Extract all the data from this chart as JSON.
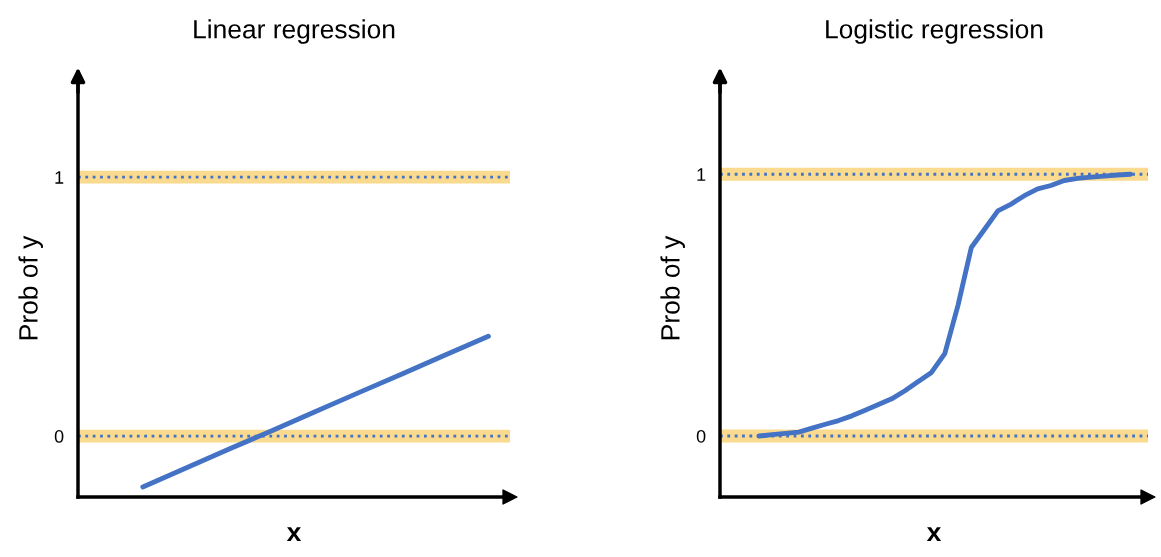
{
  "chart_data": [
    {
      "type": "line",
      "title": "Linear regression",
      "xlabel": "x",
      "ylabel": "Prob of y",
      "ylim": [
        -0.235,
        1.375
      ],
      "yticks": [
        0,
        1
      ],
      "tick_labels": "y",
      "grid": false,
      "categories": [
        null,
        null,
        null,
        null,
        null,
        null,
        null,
        null,
        null,
        null
      ],
      "series": [
        {
          "color": "#4472c4",
          "values": [
            null,
            -0.196,
            -0.123,
            -0.05,
            0.022,
            0.095,
            0.168,
            0.24,
            0.313,
            0.386
          ]
        }
      ],
      "ref_lines": [
        {
          "axis": "y",
          "value": 0,
          "color": "#4472c4",
          "line_style": "dotted"
        },
        {
          "axis": "y",
          "value": 1,
          "color": "#4472c4",
          "line_style": "dotted"
        }
      ],
      "bands": [
        {
          "axis": "y",
          "from": -0.025,
          "to": 0.025,
          "color": "#f5c242"
        },
        {
          "axis": "y",
          "from": 0.975,
          "to": 1.025,
          "color": "#f5c242"
        }
      ]
    },
    {
      "type": "line",
      "title": "Logistic regression",
      "xlabel": "x",
      "ylabel": "Prob of y",
      "ylim": [
        -0.233,
        1.36
      ],
      "yticks": [
        0,
        1
      ],
      "tick_labels": "y",
      "grid": false,
      "categories": [
        null,
        null,
        null,
        null,
        null,
        null,
        null,
        null,
        null,
        null,
        null,
        null,
        null,
        null,
        null,
        null,
        null,
        null,
        null,
        null,
        null,
        null,
        null,
        null,
        null,
        null,
        null,
        null,
        null
      ],
      "series": [
        {
          "color": "#4472c4",
          "values": [
            0,
            0.005,
            0.01,
            0.015,
            0.03,
            0.045,
            0.059,
            0.077,
            0.098,
            0.12,
            0.142,
            0.173,
            0.208,
            0.243,
            0.315,
            0.5,
            0.72,
            0.79,
            0.86,
            0.886,
            0.918,
            0.944,
            0.957,
            0.976,
            0.984,
            0.989,
            0.993,
            0.997,
            1
          ]
        }
      ],
      "ref_lines": [
        {
          "axis": "y",
          "value": 0,
          "color": "#4472c4",
          "line_style": "dotted"
        },
        {
          "axis": "y",
          "value": 1,
          "color": "#4472c4",
          "line_style": "dotted"
        }
      ],
      "bands": [
        {
          "axis": "y",
          "from": -0.025,
          "to": 0.025,
          "color": "#f5c242"
        },
        {
          "axis": "y",
          "from": 0.975,
          "to": 1.025,
          "color": "#f5c242"
        }
      ]
    }
  ]
}
